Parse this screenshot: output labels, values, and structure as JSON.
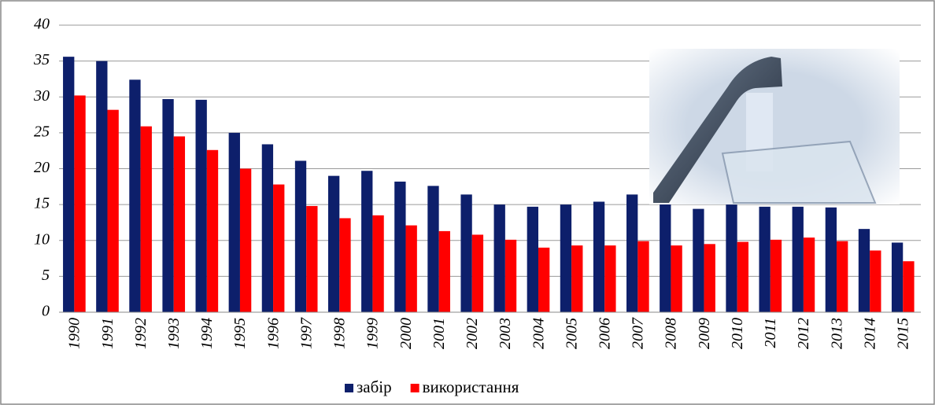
{
  "chart_data": {
    "type": "bar",
    "categories": [
      "1990",
      "1991",
      "1992",
      "1993",
      "1994",
      "1995",
      "1996",
      "1997",
      "1998",
      "1999",
      "2000",
      "2001",
      "2002",
      "2003",
      "2004",
      "2005",
      "2006",
      "2007",
      "2008",
      "2009",
      "2010",
      "2011",
      "2012",
      "2013",
      "2014",
      "2015"
    ],
    "series": [
      {
        "name": "забір",
        "color": "#0d1f6b",
        "values": [
          35.6,
          35,
          32.4,
          29.7,
          29.6,
          25,
          23.4,
          21.1,
          19,
          19.7,
          18.2,
          17.6,
          16.4,
          15,
          14.7,
          15,
          15.4,
          16.4,
          15.5,
          14.4,
          15,
          14.7,
          14.7,
          14.6,
          11.6,
          9.7
        ]
      },
      {
        "name": "використання",
        "color": "#ff0000",
        "values": [
          30.2,
          28.2,
          25.9,
          24.5,
          22.6,
          20,
          17.8,
          14.8,
          13.1,
          13.5,
          12.1,
          11.3,
          10.8,
          10.1,
          9,
          9.3,
          9.3,
          9.9,
          9.3,
          9.5,
          9.8,
          10.1,
          10.4,
          9.9,
          8.6,
          7.1
        ]
      }
    ],
    "ylim": [
      0,
      40
    ],
    "yticks": [
      0,
      5,
      10,
      15,
      20,
      25,
      30,
      35,
      40
    ],
    "grid": true,
    "legend": "bottom"
  }
}
